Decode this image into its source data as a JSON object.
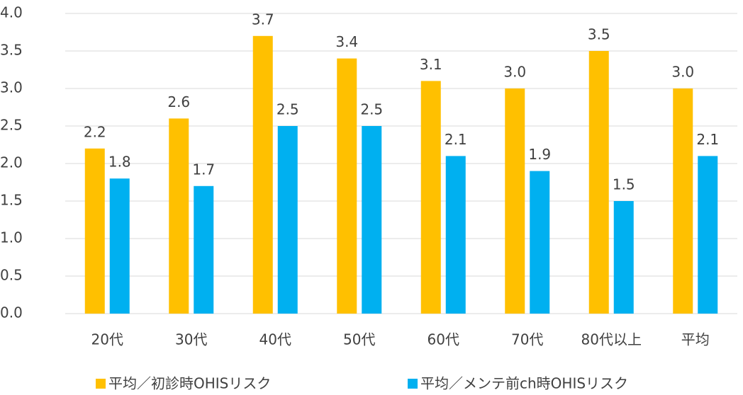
{
  "chart_data": {
    "type": "bar",
    "categories": [
      "20代",
      "30代",
      "40代",
      "50代",
      "60代",
      "70代",
      "80代以上",
      "平均"
    ],
    "series": [
      {
        "name": "平均／初診時OHISリスク",
        "color": "#FFC000",
        "values": [
          2.2,
          2.6,
          3.7,
          3.4,
          3.1,
          3.0,
          3.5,
          3.0
        ],
        "value_labels": [
          "2.2",
          "2.6",
          "3.7",
          "3.4",
          "3.1",
          "3.0",
          "3.5",
          "3.0"
        ]
      },
      {
        "name": "平均／メンテ前ch時OHISリスク",
        "color": "#00B0F0",
        "values": [
          1.8,
          1.7,
          2.5,
          2.5,
          2.1,
          1.9,
          1.5,
          2.1
        ],
        "value_labels": [
          "1.8",
          "1.7",
          "2.5",
          "2.5",
          "2.1",
          "1.9",
          "1.5",
          "2.1"
        ]
      }
    ],
    "ylim": [
      0,
      4
    ],
    "yticks": [
      {
        "value": 0,
        "label": "0.0"
      },
      {
        "value": 0.5,
        "label": "0.5"
      },
      {
        "value": 1,
        "label": "1.0"
      },
      {
        "value": 1.5,
        "label": "1.5"
      },
      {
        "value": 2,
        "label": "2.0"
      },
      {
        "value": 2.5,
        "label": "2.5"
      },
      {
        "value": 3,
        "label": "3.0"
      },
      {
        "value": 3.5,
        "label": "3.5"
      },
      {
        "value": 4,
        "label": "4.0"
      }
    ],
    "grid": true,
    "legend": "bottom"
  }
}
